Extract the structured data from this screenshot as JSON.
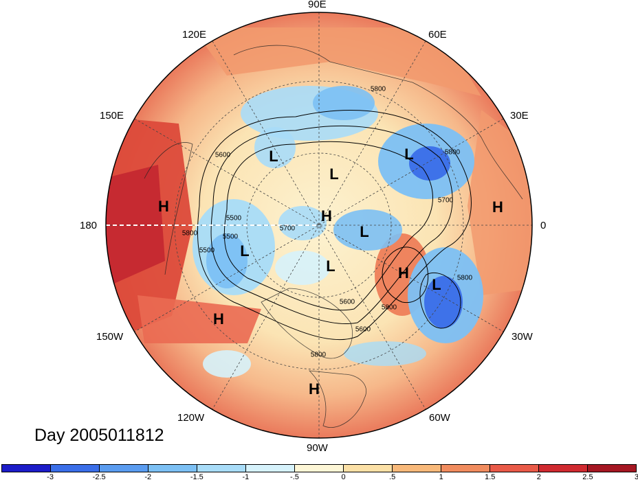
{
  "map": {
    "projection": "north-polar-stereographic",
    "longitude_labels": {
      "e90": "90E",
      "e120": "120E",
      "e60": "60E",
      "e150": "150E",
      "e30": "30E",
      "w180": "180",
      "zero": "0",
      "w150": "150W",
      "w30": "30W",
      "w120": "120W",
      "w60": "60W",
      "w90": "90W"
    },
    "pressure_centers": [
      "L",
      "L",
      "L",
      "H",
      "L",
      "L",
      "L",
      "H",
      "L",
      "H",
      "H",
      "H",
      "H"
    ],
    "contour_labels": [
      "5600",
      "5800",
      "5800",
      "5500",
      "5700",
      "5500",
      "5800",
      "5700",
      "5800",
      "5600",
      "5800",
      "5600",
      "5500",
      "5800"
    ],
    "day_label": "Day 2005011812"
  },
  "colorbar": {
    "colors": [
      "#1c1cc8",
      "#3a6ee8",
      "#5a9cf0",
      "#7cc0f4",
      "#a8dcf8",
      "#d6f2fb",
      "#fdf6d6",
      "#fbe0a6",
      "#f8b97a",
      "#f18c5e",
      "#e95a48",
      "#d02a30",
      "#a51722"
    ],
    "tick_labels": [
      "-3",
      "-2.5",
      "-2",
      "-1.5",
      "-1",
      "-.5",
      "0",
      ".5",
      "1",
      "1.5",
      "2",
      "2.5",
      "3"
    ]
  }
}
